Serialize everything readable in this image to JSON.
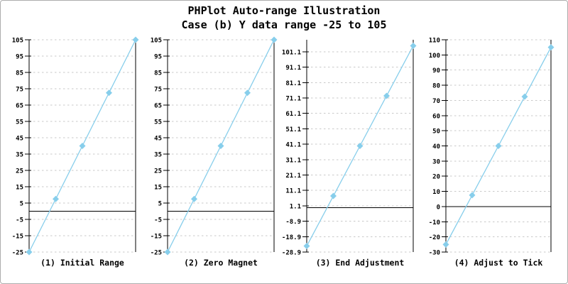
{
  "header": {
    "title_line1": "PHPlot Auto-range Illustration",
    "title_line2": "Case (b) Y data range -25 to 105"
  },
  "colors": {
    "data_line": "#87CEEB",
    "marker": "#87CEEB",
    "grid": "#C9C9C9",
    "axis": "#000000",
    "text": "#000000",
    "background": "#FFFFFF",
    "frame_border": "#ADADAD"
  },
  "chart_data": [
    {
      "type": "line",
      "title": "(1) Initial Range",
      "x": [
        0,
        1,
        2,
        3,
        4
      ],
      "y": [
        -25,
        7.5,
        40,
        72.5,
        105
      ],
      "ylim": [
        -25,
        105
      ],
      "ytick_interval": 10,
      "yticks": [
        -25,
        -15,
        -5,
        5,
        15,
        25,
        35,
        45,
        55,
        65,
        75,
        85,
        95,
        105
      ],
      "ytick_labels": [
        "-25",
        "-15",
        "-5",
        "5",
        "15",
        "25",
        "35",
        "45",
        "55",
        "65",
        "75",
        "85",
        "95",
        "105"
      ],
      "marker": "diamond",
      "grid": "dashed-horizontal",
      "x_axis_at_zero": true,
      "legend": "none"
    },
    {
      "type": "line",
      "title": "(2) Zero Magnet",
      "x": [
        0,
        1,
        2,
        3,
        4
      ],
      "y": [
        -25,
        7.5,
        40,
        72.5,
        105
      ],
      "ylim": [
        -25,
        105
      ],
      "ytick_interval": 10,
      "yticks": [
        -25,
        -15,
        -5,
        5,
        15,
        25,
        35,
        45,
        55,
        65,
        75,
        85,
        95,
        105
      ],
      "ytick_labels": [
        "-25",
        "-15",
        "-5",
        "5",
        "15",
        "25",
        "35",
        "45",
        "55",
        "65",
        "75",
        "85",
        "95",
        "105"
      ],
      "marker": "diamond",
      "grid": "dashed-horizontal",
      "x_axis_at_zero": true,
      "legend": "none"
    },
    {
      "type": "line",
      "title": "(3) End Adjustment",
      "x": [
        0,
        1,
        2,
        3,
        4
      ],
      "y": [
        -25,
        7.5,
        40,
        72.5,
        105
      ],
      "ylim": [
        -28.9,
        108.9
      ],
      "ytick_interval": 10,
      "yticks": [
        -28.9,
        -18.9,
        -8.9,
        1.1,
        11.1,
        21.1,
        31.1,
        41.1,
        51.1,
        61.1,
        71.1,
        81.1,
        91.1,
        101.1
      ],
      "ytick_labels": [
        "-28.9",
        "-18.9",
        "-8.9",
        "1.1",
        "11.1",
        "21.1",
        "31.1",
        "41.1",
        "51.1",
        "61.1",
        "71.1",
        "81.1",
        "91.1",
        "101.1"
      ],
      "marker": "diamond",
      "grid": "dashed-horizontal",
      "x_axis_at_zero": true,
      "legend": "none"
    },
    {
      "type": "line",
      "title": "(4) Adjust to Tick",
      "x": [
        0,
        1,
        2,
        3,
        4
      ],
      "y": [
        -25,
        7.5,
        40,
        72.5,
        105
      ],
      "ylim": [
        -30,
        110
      ],
      "ytick_interval": 10,
      "yticks": [
        -30,
        -20,
        -10,
        0,
        10,
        20,
        30,
        40,
        50,
        60,
        70,
        80,
        90,
        100,
        110
      ],
      "ytick_labels": [
        "-30",
        "-20",
        "-10",
        "0",
        "10",
        "20",
        "30",
        "40",
        "50",
        "60",
        "70",
        "80",
        "90",
        "100",
        "110"
      ],
      "marker": "diamond",
      "grid": "dashed-horizontal",
      "x_axis_at_zero": true,
      "legend": "none"
    }
  ]
}
